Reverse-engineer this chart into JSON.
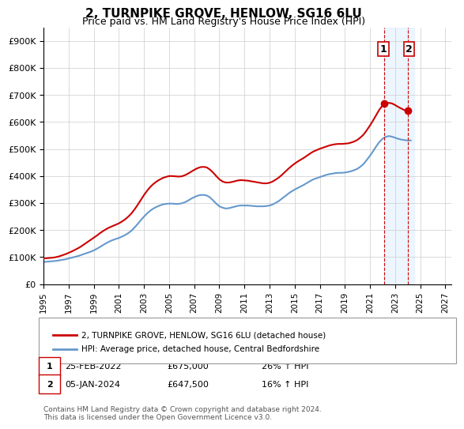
{
  "title": "2, TURNPIKE GROVE, HENLOW, SG16 6LU",
  "subtitle": "Price paid vs. HM Land Registry's House Price Index (HPI)",
  "ylabel": "",
  "ylim": [
    0,
    950000
  ],
  "yticks": [
    0,
    100000,
    200000,
    300000,
    400000,
    500000,
    600000,
    700000,
    800000,
    900000
  ],
  "ytick_labels": [
    "£0",
    "£100K",
    "£200K",
    "£300K",
    "£400K",
    "£500K",
    "£600K",
    "£700K",
    "£800K",
    "£900K"
  ],
  "xlim_start": 1995.0,
  "xlim_end": 2027.5,
  "property_color": "#cc0000",
  "hpi_color": "#6699cc",
  "transaction1_date": "25-FEB-2022",
  "transaction1_price": 675000,
  "transaction1_pct": "26%",
  "transaction1_year": 2022.15,
  "transaction2_date": "05-JAN-2024",
  "transaction2_price": 647500,
  "transaction2_pct": "16%",
  "transaction2_year": 2024.02,
  "legend_label1": "2, TURNPIKE GROVE, HENLOW, SG16 6LU (detached house)",
  "legend_label2": "HPI: Average price, detached house, Central Bedfordshire",
  "footnote": "Contains HM Land Registry data © Crown copyright and database right 2024.\nThis data is licensed under the Open Government Licence v3.0.",
  "hpi_data_x": [
    1995.0,
    1995.25,
    1995.5,
    1995.75,
    1996.0,
    1996.25,
    1996.5,
    1996.75,
    1997.0,
    1997.25,
    1997.5,
    1997.75,
    1998.0,
    1998.25,
    1998.5,
    1998.75,
    1999.0,
    1999.25,
    1999.5,
    1999.75,
    2000.0,
    2000.25,
    2000.5,
    2000.75,
    2001.0,
    2001.25,
    2001.5,
    2001.75,
    2002.0,
    2002.25,
    2002.5,
    2002.75,
    2003.0,
    2003.25,
    2003.5,
    2003.75,
    2004.0,
    2004.25,
    2004.5,
    2004.75,
    2005.0,
    2005.25,
    2005.5,
    2005.75,
    2006.0,
    2006.25,
    2006.5,
    2006.75,
    2007.0,
    2007.25,
    2007.5,
    2007.75,
    2008.0,
    2008.25,
    2008.5,
    2008.75,
    2009.0,
    2009.25,
    2009.5,
    2009.75,
    2010.0,
    2010.25,
    2010.5,
    2010.75,
    2011.0,
    2011.25,
    2011.5,
    2011.75,
    2012.0,
    2012.25,
    2012.5,
    2012.75,
    2013.0,
    2013.25,
    2013.5,
    2013.75,
    2014.0,
    2014.25,
    2014.5,
    2014.75,
    2015.0,
    2015.25,
    2015.5,
    2015.75,
    2016.0,
    2016.25,
    2016.5,
    2016.75,
    2017.0,
    2017.25,
    2017.5,
    2017.75,
    2018.0,
    2018.25,
    2018.5,
    2018.75,
    2019.0,
    2019.25,
    2019.5,
    2019.75,
    2020.0,
    2020.25,
    2020.5,
    2020.75,
    2021.0,
    2021.25,
    2021.5,
    2021.75,
    2022.0,
    2022.25,
    2022.5,
    2022.75,
    2023.0,
    2023.25,
    2023.5,
    2023.75,
    2024.0,
    2024.25
  ],
  "hpi_data_y": [
    82000,
    83000,
    84000,
    85000,
    86000,
    88000,
    90000,
    92000,
    95000,
    98000,
    101000,
    104000,
    108000,
    112000,
    116000,
    120000,
    125000,
    131000,
    138000,
    145000,
    152000,
    158000,
    163000,
    167000,
    171000,
    176000,
    182000,
    189000,
    198000,
    210000,
    223000,
    237000,
    250000,
    262000,
    272000,
    280000,
    286000,
    291000,
    295000,
    297000,
    298000,
    298000,
    297000,
    297000,
    299000,
    303000,
    309000,
    316000,
    322000,
    327000,
    330000,
    330000,
    328000,
    321000,
    310000,
    298000,
    288000,
    283000,
    280000,
    281000,
    284000,
    287000,
    290000,
    291000,
    291000,
    291000,
    290000,
    289000,
    288000,
    288000,
    288000,
    289000,
    291000,
    295000,
    301000,
    308000,
    317000,
    326000,
    335000,
    343000,
    350000,
    356000,
    362000,
    368000,
    375000,
    382000,
    388000,
    392000,
    396000,
    400000,
    404000,
    407000,
    409000,
    411000,
    412000,
    412000,
    413000,
    415000,
    418000,
    422000,
    427000,
    435000,
    445000,
    460000,
    475000,
    492000,
    510000,
    526000,
    538000,
    545000,
    548000,
    546000,
    542000,
    538000,
    535000,
    533000,
    532000,
    532000
  ],
  "property_data_x": [
    1995.0,
    1995.25,
    1995.5,
    1995.75,
    1996.0,
    1996.25,
    1996.5,
    1996.75,
    1997.0,
    1997.25,
    1997.5,
    1997.75,
    1998.0,
    1998.25,
    1998.5,
    1998.75,
    1999.0,
    1999.25,
    1999.5,
    1999.75,
    2000.0,
    2000.25,
    2000.5,
    2000.75,
    2001.0,
    2001.25,
    2001.5,
    2001.75,
    2002.0,
    2002.25,
    2002.5,
    2002.75,
    2003.0,
    2003.25,
    2003.5,
    2003.75,
    2004.0,
    2004.25,
    2004.5,
    2004.75,
    2005.0,
    2005.25,
    2005.5,
    2005.75,
    2006.0,
    2006.25,
    2006.5,
    2006.75,
    2007.0,
    2007.25,
    2007.5,
    2007.75,
    2008.0,
    2008.25,
    2008.5,
    2008.75,
    2009.0,
    2009.25,
    2009.5,
    2009.75,
    2010.0,
    2010.25,
    2010.5,
    2010.75,
    2011.0,
    2011.25,
    2011.5,
    2011.75,
    2012.0,
    2012.25,
    2012.5,
    2012.75,
    2013.0,
    2013.25,
    2013.5,
    2013.75,
    2014.0,
    2014.25,
    2014.5,
    2014.75,
    2015.0,
    2015.25,
    2015.5,
    2015.75,
    2016.0,
    2016.25,
    2016.5,
    2016.75,
    2017.0,
    2017.25,
    2017.5,
    2017.75,
    2018.0,
    2018.25,
    2018.5,
    2018.75,
    2019.0,
    2019.25,
    2019.5,
    2019.75,
    2020.0,
    2020.25,
    2020.5,
    2020.75,
    2021.0,
    2021.25,
    2021.5,
    2021.75,
    2022.0,
    2022.25,
    2022.5,
    2022.75,
    2023.0,
    2023.25,
    2023.5,
    2023.75,
    2024.0,
    2024.25
  ],
  "property_data_y": [
    95000,
    96000,
    97000,
    98000,
    100000,
    103000,
    107000,
    111000,
    116000,
    121000,
    127000,
    133000,
    140000,
    148000,
    156000,
    164000,
    172000,
    180000,
    189000,
    197000,
    204000,
    210000,
    215000,
    220000,
    225000,
    232000,
    240000,
    250000,
    262000,
    277000,
    294000,
    312000,
    330000,
    346000,
    360000,
    371000,
    380000,
    387000,
    393000,
    397000,
    400000,
    400000,
    399000,
    398000,
    399000,
    403000,
    409000,
    416000,
    423000,
    429000,
    433000,
    434000,
    432000,
    424000,
    413000,
    400000,
    388000,
    380000,
    376000,
    376000,
    378000,
    381000,
    384000,
    385000,
    384000,
    383000,
    381000,
    379000,
    377000,
    375000,
    373000,
    373000,
    375000,
    380000,
    387000,
    395000,
    405000,
    416000,
    427000,
    437000,
    446000,
    454000,
    461000,
    468000,
    476000,
    484000,
    491000,
    496000,
    501000,
    505000,
    509000,
    513000,
    516000,
    518000,
    519000,
    519000,
    520000,
    521000,
    524000,
    528000,
    534000,
    543000,
    554000,
    570000,
    587000,
    606000,
    626000,
    646000,
    661000,
    668000,
    671000,
    669000,
    663000,
    656000,
    650000,
    644000,
    641000,
    640000
  ],
  "xticks": [
    1995,
    1997,
    1999,
    2001,
    2003,
    2005,
    2007,
    2009,
    2011,
    2013,
    2015,
    2017,
    2019,
    2021,
    2023,
    2025,
    2027
  ],
  "background_color": "#ffffff",
  "grid_color": "#cccccc",
  "shaded_region_color": "#ddeeff"
}
